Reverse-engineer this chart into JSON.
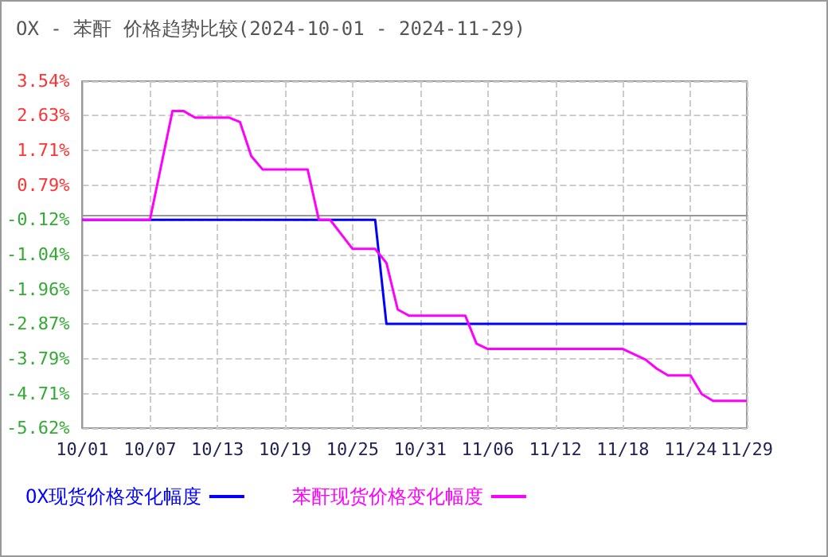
{
  "chart_data": {
    "type": "line",
    "title": "OX - 苯酐 价格趋势比较(2024-10-01 - 2024-11-29)",
    "series": [
      {
        "name": "OX现货价格变化幅度",
        "color": "#0000ff",
        "x": [
          "2024-10-01",
          "2024-10-27",
          "2024-10-28",
          "2024-11-29"
        ],
        "values": [
          -0.12,
          -0.12,
          -2.87,
          -2.87
        ]
      },
      {
        "name": "苯酐现货价格变化幅度",
        "color": "#ff00ff",
        "x": [
          "2024-10-01",
          "2024-10-07",
          "2024-10-09",
          "2024-10-10",
          "2024-10-11",
          "2024-10-14",
          "2024-10-15",
          "2024-10-16",
          "2024-10-17",
          "2024-10-21",
          "2024-10-22",
          "2024-10-23",
          "2024-10-25",
          "2024-10-27",
          "2024-10-28",
          "2024-10-29",
          "2024-10-30",
          "2024-11-04",
          "2024-11-05",
          "2024-11-06",
          "2024-11-18",
          "2024-11-20",
          "2024-11-21",
          "2024-11-22",
          "2024-11-24",
          "2024-11-25",
          "2024-11-26",
          "2024-11-29"
        ],
        "values": [
          -0.12,
          -0.12,
          2.75,
          2.75,
          2.58,
          2.58,
          2.46,
          1.56,
          1.21,
          1.21,
          -0.12,
          -0.12,
          -0.89,
          -0.89,
          -1.26,
          -2.49,
          -2.65,
          -2.65,
          -3.39,
          -3.53,
          -3.53,
          -3.81,
          -4.05,
          -4.23,
          -4.23,
          -4.72,
          -4.9,
          -4.9
        ]
      }
    ],
    "xlim": [
      "2024-10-01",
      "2024-11-29"
    ],
    "xticks": [
      {
        "value": "2024-10-01",
        "label": "10/01"
      },
      {
        "value": "2024-10-07",
        "label": "10/07"
      },
      {
        "value": "2024-10-13",
        "label": "10/13"
      },
      {
        "value": "2024-10-19",
        "label": "10/19"
      },
      {
        "value": "2024-10-25",
        "label": "10/25"
      },
      {
        "value": "2024-10-31",
        "label": "10/31"
      },
      {
        "value": "2024-11-06",
        "label": "11/06"
      },
      {
        "value": "2024-11-12",
        "label": "11/12"
      },
      {
        "value": "2024-11-18",
        "label": "11/18"
      },
      {
        "value": "2024-11-24",
        "label": "11/24"
      },
      {
        "value": "2024-11-29",
        "label": "11/29"
      }
    ],
    "ylim": [
      -5.62,
      3.54
    ],
    "yticks": [
      {
        "value": -5.62,
        "label": "-5.62%"
      },
      {
        "value": -4.71,
        "label": "-4.71%"
      },
      {
        "value": -3.79,
        "label": "-3.79%"
      },
      {
        "value": -2.87,
        "label": "-2.87%"
      },
      {
        "value": -1.96,
        "label": "-1.96%"
      },
      {
        "value": -1.04,
        "label": "-1.04%"
      },
      {
        "value": -0.12,
        "label": "-0.12%"
      },
      {
        "value": 0.79,
        "label": "0.79%"
      },
      {
        "value": 1.71,
        "label": "1.71%"
      },
      {
        "value": 2.63,
        "label": "2.63%"
      },
      {
        "value": 3.54,
        "label": "3.54%"
      }
    ],
    "grid": true,
    "legend": "bottom",
    "marker": "none",
    "line_style": "solid"
  }
}
